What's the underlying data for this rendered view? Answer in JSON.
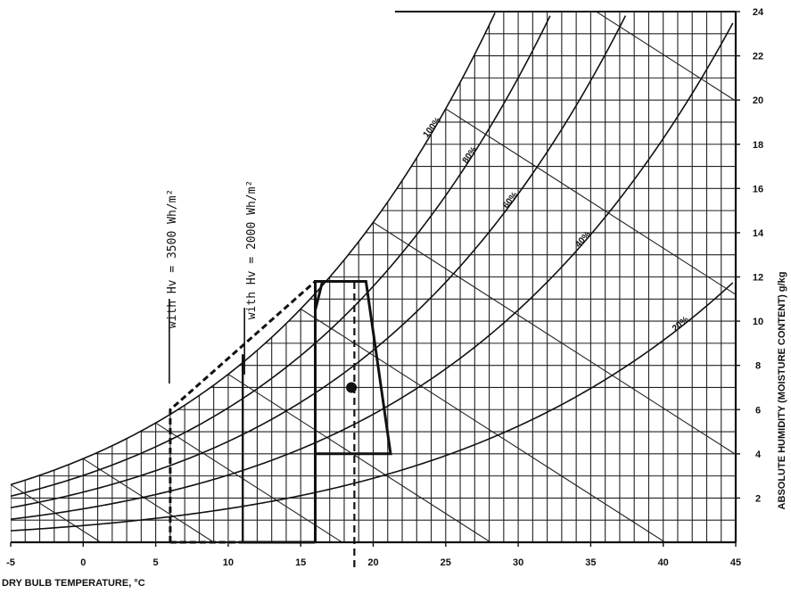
{
  "chart_data": {
    "type": "line",
    "title": "",
    "xlabel": "DRY BULB TEMPERATURE, °C",
    "ylabel": "ABSOLUTE HUMIDITY (MOISTURE CONTENT) g/kg",
    "xlim": [
      -5,
      45
    ],
    "ylim": [
      0,
      24
    ],
    "x_ticks": [
      "-5",
      "0",
      "5",
      "10",
      "15",
      "20",
      "25",
      "30",
      "35",
      "40",
      "45"
    ],
    "y_ticks": [
      "2",
      "4",
      "6",
      "8",
      "10",
      "12",
      "14",
      "16",
      "18",
      "20",
      "22",
      "24"
    ],
    "grid": true,
    "rh_curves": [
      {
        "label": "100%",
        "rh": 1.0
      },
      {
        "label": "80%",
        "rh": 0.8
      },
      {
        "label": "60%",
        "rh": 0.6
      },
      {
        "label": "40%",
        "rh": 0.4
      },
      {
        "label": "20%",
        "rh": 0.2
      }
    ],
    "annotations": [
      {
        "text": "with Hv = 3500 Wh/m²"
      },
      {
        "text": "with Hv = 2000 Wh/m²"
      }
    ],
    "comfort_zone": [
      [
        16,
        4
      ],
      [
        16,
        10.5
      ],
      [
        16.5,
        11.8
      ],
      [
        19.5,
        11.8
      ],
      [
        21.2,
        4
      ],
      [
        16,
        4
      ]
    ],
    "zone_bold_outline": [
      [
        16,
        0
      ],
      [
        16,
        11.8
      ],
      [
        19.5,
        11.8
      ]
    ],
    "zone_dashed_outline": [
      [
        6,
        0
      ],
      [
        6,
        6
      ],
      [
        16,
        11.8
      ]
    ],
    "zone_solid_outline": [
      [
        11,
        0
      ],
      [
        11,
        8.5
      ]
    ],
    "point": {
      "x": 18.5,
      "y": 7
    },
    "dashed_vertical_x": 18.7
  }
}
